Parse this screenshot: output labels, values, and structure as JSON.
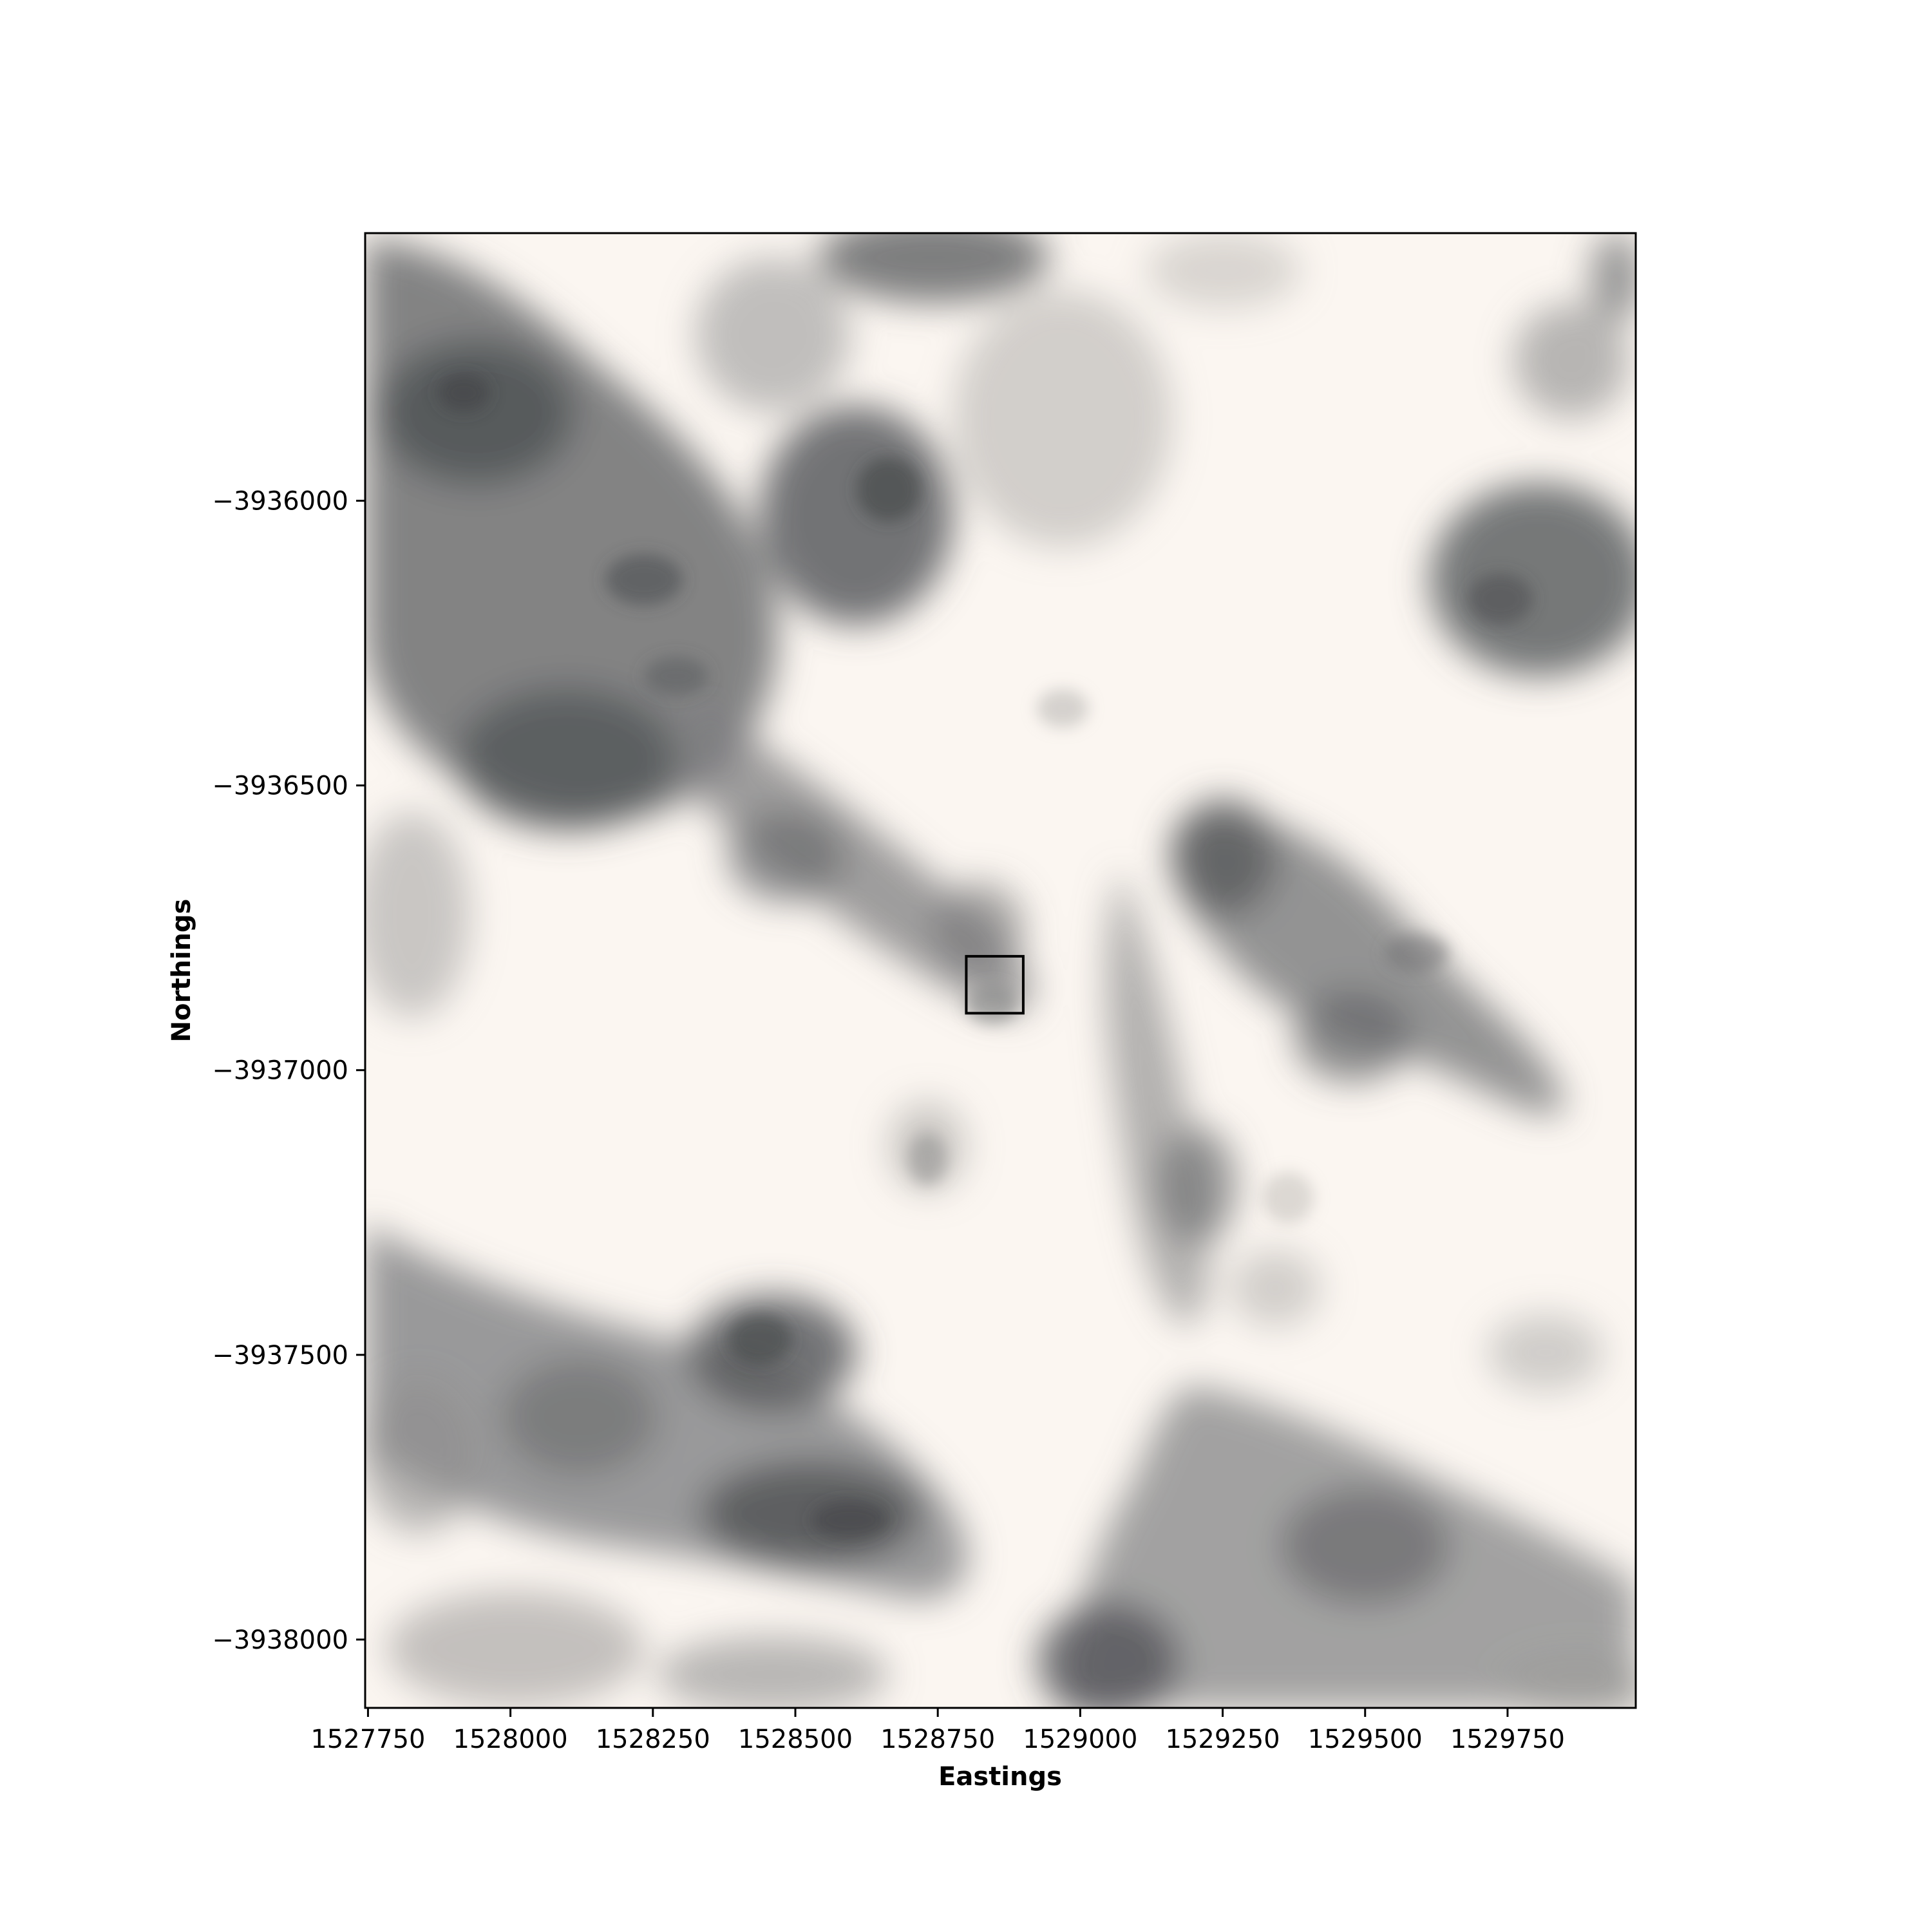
{
  "map": {
    "x_axis": {
      "label": "Eastings",
      "range": [
        1527745,
        1529975
      ],
      "ticks": [
        1527750,
        1528000,
        1528250,
        1528500,
        1528750,
        1529000,
        1529250,
        1529500,
        1529750
      ],
      "tick_labels": [
        "1527750",
        "1528000",
        "1528250",
        "1528500",
        "1528750",
        "1529000",
        "1529250",
        "1529500",
        "1529750"
      ]
    },
    "y_axis": {
      "label": "Northings",
      "range": [
        -3938120,
        -3935530
      ],
      "ticks": [
        -3936000,
        -3936500,
        -3937000,
        -3937500,
        -3938000
      ],
      "tick_labels": [
        "−3936000",
        "−3936500",
        "−3937000",
        "−3937500",
        "−3938000"
      ]
    },
    "grid": false,
    "basemap": "grayscale satellite imagery with scattered dark gray vegetation patches on a light background",
    "highlight_box": {
      "x_range": [
        1528800,
        1528900
      ],
      "y_range": [
        -3936900,
        -3936800
      ],
      "color": "#000000"
    },
    "colors": {
      "background": "#ffffff",
      "light_ground": "#fbf6f1",
      "dark_vegetation": "#5e6063",
      "medium_vegetation": "#9a9a99"
    }
  }
}
